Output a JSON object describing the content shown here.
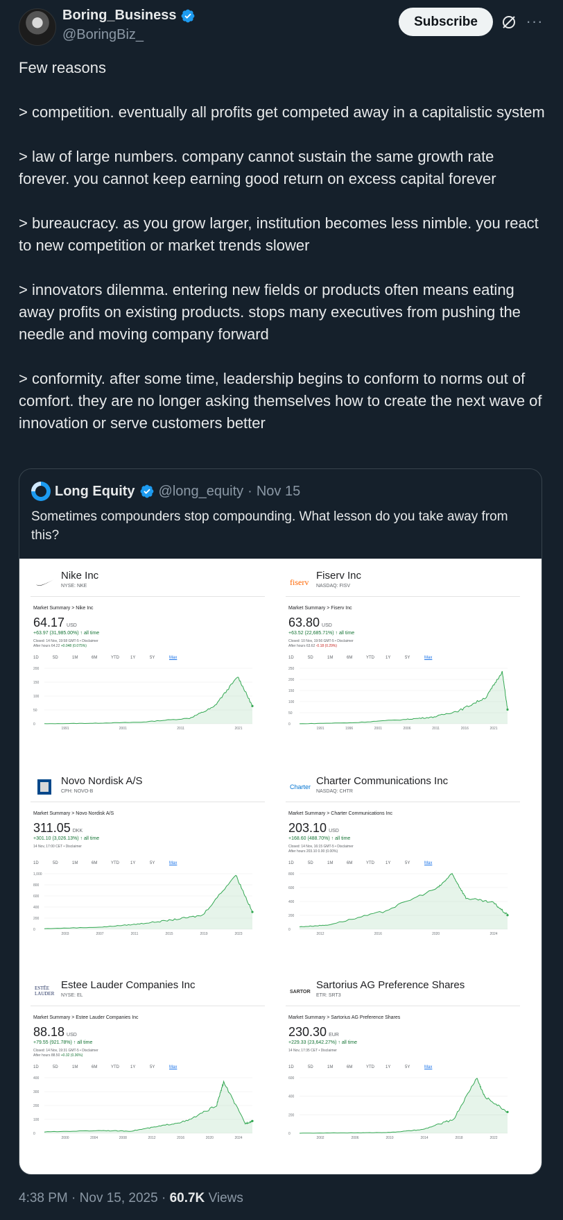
{
  "author": {
    "display_name": "Boring_Business",
    "handle": "@BoringBiz_"
  },
  "subscribe_label": "Subscribe",
  "tweet_paragraphs": [
    "Few reasons",
    "> competition. eventually all profits get competed away in a capitalistic system",
    "> law of large numbers. company cannot sustain the same growth rate forever. you cannot keep earning good return on excess capital forever",
    "> bureaucracy. as you grow larger, institution becomes less nimble. you react to new competition or market trends slower",
    "> innovators dilemma. entering new fields or products often means eating away profits on existing products. stops many executives from pushing the needle and moving company forward",
    "> conformity. after some time, leadership begins to conform to norms out of comfort. they are no longer asking themselves how to create the next wave of innovation or serve customers better"
  ],
  "quote": {
    "name": "Long Equity",
    "handle": "@long_equity",
    "separator": "·",
    "date": "Nov 15",
    "text": "Sometimes compounders stop compounding. What lesson do you take away from this?"
  },
  "range_labels": [
    "1D",
    "5D",
    "1M",
    "6M",
    "YTD",
    "1Y",
    "5Y",
    "Max"
  ],
  "panels": [
    {
      "name": "Nike Inc",
      "ticker": "NYSE: NKE",
      "crumb": "Market Summary > Nike Inc",
      "price": "64.17",
      "currency": "USD",
      "change": "+63.97 (31,985.00%) ↑ all time",
      "closed": "Closed: 14 Nov, 19:58 GMT-5 • Disclaimer",
      "after": "After hours 64.22 ",
      "after_delta": "+0.048 (0.075%)",
      "after_sign": "pos",
      "logo": "nike-swoosh",
      "yticks": [
        "200",
        "150",
        "100",
        "50",
        "0"
      ],
      "xticks": [
        "1991",
        "2001",
        "2011",
        "2021"
      ],
      "chart_data": {
        "type": "line",
        "x": [
          1981,
          1991,
          2001,
          2011,
          2016,
          2021,
          2024
        ],
        "values": [
          0.2,
          2,
          6,
          20,
          60,
          170,
          64
        ],
        "ylim": [
          0,
          200
        ]
      }
    },
    {
      "name": "Fiserv Inc",
      "ticker": "NASDAQ: FISV",
      "crumb": "Market Summary > Fiserv Inc",
      "price": "63.80",
      "currency": "USD",
      "change": "+63.52 (22,685.71%) ↑ all time",
      "closed": "Closed: 10 Nov, 19:56 GMT-5 • Disclaimer",
      "after": "After hours 63.62 ",
      "after_delta": "-0.18 (0.29%)",
      "after_sign": "neg",
      "logo": "fiserv",
      "yticks": [
        "250",
        "200",
        "150",
        "100",
        "50",
        "0"
      ],
      "xticks": [
        "1991",
        "1996",
        "2001",
        "2006",
        "2011",
        "2016",
        "2021"
      ],
      "chart_data": {
        "type": "line",
        "x": [
          1986,
          1996,
          2006,
          2011,
          2016,
          2021,
          2024,
          2025
        ],
        "values": [
          0.3,
          5,
          20,
          30,
          60,
          120,
          235,
          64
        ],
        "ylim": [
          0,
          250
        ]
      }
    },
    {
      "name": "Novo Nordisk A/S",
      "ticker": "CPH: NOVO-B",
      "crumb": "Market Summary > Novo Nordisk A/S",
      "price": "311.05",
      "currency": "DKK",
      "change": "+301.10 (3,026.13%) ↑ all time",
      "closed": "14 Nov, 17:00 CET • Disclaimer",
      "after": "",
      "after_delta": "",
      "after_sign": "",
      "logo": "novo",
      "yticks": [
        "1,000",
        "800",
        "600",
        "400",
        "200",
        "0"
      ],
      "xticks": [
        "2003",
        "2007",
        "2011",
        "2015",
        "2019",
        "2023"
      ],
      "chart_data": {
        "type": "line",
        "x": [
          2000,
          2007,
          2011,
          2015,
          2019,
          2023,
          2025
        ],
        "values": [
          10,
          40,
          90,
          160,
          250,
          980,
          311
        ],
        "ylim": [
          0,
          1000
        ]
      }
    },
    {
      "name": "Charter Communications Inc",
      "ticker": "NASDAQ: CHTR",
      "crumb": "Market Summary > Charter Communications Inc",
      "price": "203.10",
      "currency": "USD",
      "change": "+168.60 (488.70%) ↑ all time",
      "closed": "Closed: 14 Nov, 16:15 GMT-5 • Disclaimer",
      "after": "After hours 203.10 ",
      "after_delta": "0.00 (0.00%)",
      "after_sign": "",
      "logo": "charter",
      "yticks": [
        "800",
        "600",
        "400",
        "200",
        "0"
      ],
      "xticks": [
        "2012",
        "2016",
        "2020",
        "2024"
      ],
      "chart_data": {
        "type": "line",
        "x": [
          2010,
          2012,
          2016,
          2020,
          2021,
          2022,
          2024,
          2025
        ],
        "values": [
          35,
          60,
          250,
          600,
          800,
          450,
          380,
          203
        ],
        "ylim": [
          0,
          800
        ]
      }
    },
    {
      "name": "Estee Lauder Companies Inc",
      "ticker": "NYSE: EL",
      "crumb": "Market Summary > Estee Lauder Companies Inc",
      "price": "88.18",
      "currency": "USD",
      "change": "+79.55 (921.78%) ↑ all time",
      "closed": "Closed: 14 Nov, 19:31 GMT-5 • Disclaimer",
      "after": "After hours 88.50 ",
      "after_delta": "+0.32 (0.36%)",
      "after_sign": "pos",
      "logo": "estee",
      "yticks": [
        "400",
        "300",
        "200",
        "100",
        "0"
      ],
      "xticks": [
        "2000",
        "2004",
        "2008",
        "2012",
        "2016",
        "2020",
        "2024"
      ],
      "chart_data": {
        "type": "line",
        "x": [
          1996,
          2004,
          2008,
          2012,
          2016,
          2020,
          2021,
          2024,
          2025
        ],
        "values": [
          10,
          20,
          15,
          50,
          90,
          200,
          370,
          70,
          88
        ],
        "ylim": [
          0,
          400
        ]
      }
    },
    {
      "name": "Sartorius AG Preference Shares",
      "ticker": "ETR: SRT3",
      "crumb": "Market Summary > Sartorius AG Preference Shares",
      "price": "230.30",
      "currency": "EUR",
      "change": "+229.33 (23,642.27%) ↑ all time",
      "closed": "14 Nov, 17:35 CET • Disclaimer",
      "after": "",
      "after_delta": "",
      "after_sign": "",
      "logo": "sartorius",
      "yticks": [
        "600",
        "400",
        "200",
        "0"
      ],
      "xticks": [
        "2002",
        "2006",
        "2010",
        "2014",
        "2018",
        "2022"
      ],
      "chart_data": {
        "type": "line",
        "x": [
          1998,
          2006,
          2010,
          2014,
          2018,
          2021,
          2022,
          2025
        ],
        "values": [
          1,
          5,
          10,
          40,
          150,
          600,
          400,
          230
        ],
        "ylim": [
          0,
          600
        ]
      }
    }
  ],
  "footer": {
    "time": "4:38 PM",
    "date": "Nov 15, 2025",
    "views_count": "60.7K",
    "views_label": "Views"
  },
  "colors": {
    "background": "#15202b",
    "verified": "#1d9bf0",
    "chart_line": "#34a853"
  }
}
